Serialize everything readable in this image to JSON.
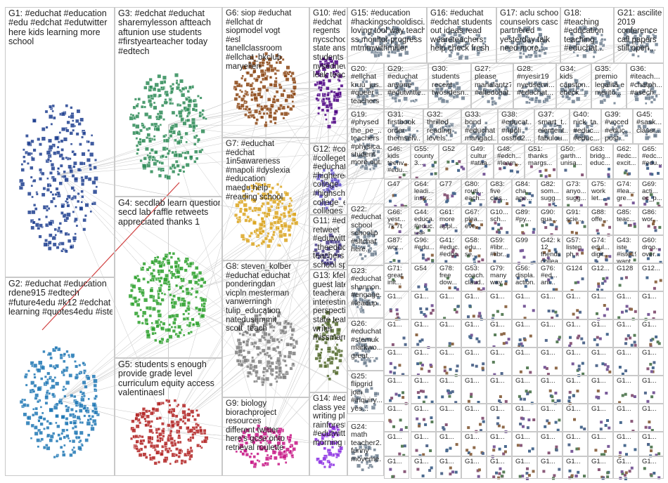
{
  "graph": {
    "description_visible": false,
    "groups": [
      {
        "id": "G1",
        "label": "G1: #educhat #education\n#edu #edchat #edutwitter\nhere kids learning more\nschool",
        "color": "#1f3f8f"
      },
      {
        "id": "G2",
        "label": "G2: #educhat #education\nrdene915 #edtech\n#future4edu #k12 #edchat\nlearning #quotes4edu #iste19",
        "color": "#1f77b4"
      },
      {
        "id": "G3",
        "label": "G3: #edchat #educhat\nsharemylesson aftteach\naftunion use students\n#firstyearteacher today\n#edtech",
        "color": "#2e8b57"
      },
      {
        "id": "G4",
        "label": "G4: secdlab learn questions\nsecd lab raffle retweets\nappreciated thanks 1",
        "color": "#2ca02c"
      },
      {
        "id": "G5",
        "label": "G5: students s enough\nprovide grade level\ncurriculum equity access\nvalentinaesl",
        "color": "#b22222"
      },
      {
        "id": "G6",
        "label": "G6: siop #educhat\n#ellchat dr\nsiopmodel vogt\n#esl\ntanellclassroom\n#ellchat_bkclub\nmaryellen",
        "color": "#8b4513"
      },
      {
        "id": "G7",
        "label": "G7: #educhat\n#edchat\n1in5awareness\n#mapoli #dyslexia\n#education\nmaedu help\n#reading school",
        "color": "#daa520"
      },
      {
        "id": "G8",
        "label": "G8: steven_kolber\n#educhat educhat\nponderingdan\nvicpln mesterman\nvanwerningh\ntulip_education\nnatedusummit\nscott_teach",
        "color": "#7f7f7f"
      },
      {
        "id": "G9",
        "label": "G9: biology\nbiorachproject\nresources\ndifferent twitter\nhere's gcse onto\nretrieval roulette",
        "color": "#c71585"
      },
      {
        "id": "G10",
        "label": "G10: #educhat\n#edchat\nregents\nnycschools\nstate answers\nstudents\nnysednews\nleak teachers",
        "color": "#4b0082"
      },
      {
        "id": "G11",
        "label": "G11: #educhat\nretweet\n#edutwitter nqt\n_theeducator\nteachers top tip\nschool spaces",
        "color": "#483d8b"
      },
      {
        "id": "G12",
        "label": "G12: #college\n#collegetalk\n#educhat\n#highered\ncollege\n#highschool\ncollege_exper...\ncolleges\n#education s",
        "color": "#6a5acd"
      },
      {
        "id": "G13",
        "label": "G13: kfelicello\nguest latest\nteacherandad...\ninteresting\nperspective\nstate teats\nwriter\nmissmarrion",
        "color": "#556b2f"
      },
      {
        "id": "G14",
        "label": "G14: #educhat\nclass year\nwriting please\nrainforests\n#edutwitter still\nmorning more",
        "color": "#8a2be2"
      },
      {
        "id": "G15",
        "label": "G15: #education\n#hackingschooldisci...\nloving tool way teach\nss monitor progress\nmtmmwithmiller",
        "color": "#708090"
      },
      {
        "id": "G16",
        "label": "G16: #educhat\n#edchat students\nout ideas read\nweareteachers\nhelp check fresh",
        "color": "#708090"
      },
      {
        "id": "G17",
        "label": "G17: aclu school\ncounselors casc\npartnered\nyesterday talk\nneed more...",
        "color": "#708090"
      },
      {
        "id": "G18",
        "label": "G18:\n#teaching\n#education\nteaching\n#educhat...",
        "color": "#708090"
      },
      {
        "id": "G21",
        "label": "G21: ascilite\n2019\nconference\ncall papers\nstill open...",
        "color": "#708090"
      },
      {
        "id": "G20",
        "label": "G20:\n#ellchat\nkruu_jus...\n#queer_...\nteachers",
        "color": "#708090"
      },
      {
        "id": "G29",
        "label": "G29:\n#educhat\nanyone\n#edutwitte...",
        "color": "#708090"
      },
      {
        "id": "G30",
        "label": "G30:\nstudents\nrecent\ntwosidesn...",
        "color": "#708090"
      },
      {
        "id": "G27",
        "label": "G27:\nplease\nmarialantz7\n#altedchat...",
        "color": "#708090"
      },
      {
        "id": "G28",
        "label": "G28:\n#nyesir19\nnyedservi...\n#educhat...",
        "color": "#708090"
      },
      {
        "id": "G34",
        "label": "G34:\nkids\ncapston...\ncheck...",
        "color": "#708090"
      },
      {
        "id": "G35",
        "label": "G35:\npremio\nlegalità e\nmerito...",
        "color": "#708090"
      },
      {
        "id": "G36",
        "label": "G36:\n#iteach...\n#chatph...\n#asech...",
        "color": "#708090"
      },
      {
        "id": "G19",
        "label": "G19:\n#physed\nthe_pe_...\nteachers\n#physica...\nstudent\nmore out...",
        "color": "#708090"
      },
      {
        "id": "G31",
        "label": "G31:\nfirstbook\norder\nthemselv...",
        "color": "#708090"
      },
      {
        "id": "G32",
        "label": "G32:\nthrilled\nreading\nlevels...",
        "color": "#708090"
      },
      {
        "id": "G33",
        "label": "G33:\nbond\n#educhat\nmangacl...",
        "color": "#708090"
      },
      {
        "id": "G38",
        "label": "G38:\n#educat...\n#npoli\nosstfd2...",
        "color": "#708090"
      },
      {
        "id": "G37",
        "label": "G37:\nsmart_t...\nelement...\nfabulou...",
        "color": "#708090"
      },
      {
        "id": "G40",
        "label": "G40:\nnick_ta...\n#educ...\n#educ...",
        "color": "#708090"
      },
      {
        "id": "G39",
        "label": "G39:\n#voced\n#educ...\npost...",
        "color": "#708090"
      },
      {
        "id": "G45",
        "label": "G45:\n#sask...\nclassr...",
        "color": "#708090"
      },
      {
        "id": "G22",
        "label": "G22:\n#educhat\nschool\nschoolip\n#sltchat\nhere...",
        "color": "#708090"
      },
      {
        "id": "G23",
        "label": "G23:\n#educhat\nshannon...\n#engage...\n#leadup...",
        "color": "#708090"
      },
      {
        "id": "G26",
        "label": "G26:\n#educhat\n#stemuk\nmarkwo...\ngreat...",
        "color": "#708090"
      },
      {
        "id": "G25",
        "label": "G25:\nflipgrid\njoin\n#inquiry...\nyes...",
        "color": "#708090"
      },
      {
        "id": "G24",
        "label": "G24:\nmath\nteacher2...\nfunny\nmoveme...",
        "color": "#708090"
      }
    ],
    "small_group_labels": [
      "G46:\nkids\nteenv...\n#edu...",
      "G55:\ncounty\n3...",
      "G52",
      "G49:\ncultur\n#ataa...",
      "G48:\n#edch...\n#learn...",
      "G51:\nthanks\nmargs...",
      "G50:\ngarth...\nunisa...",
      "G63:\nbridg...\neduc...",
      "G62:\n#edc...\nexcit...",
      "G65:\n#edc...\n#edu...",
      "G47",
      "G64:\nleadi...\ninstr...",
      "G77",
      "G80:\nrouti...\neach...",
      "G83:\nfive\nclas...",
      "G84:\ncha...\nage...",
      "G82:\nsom...\nsugg...",
      "G73:\nanyo...\nsugg...",
      "G75:\nwork\nlet...",
      "G74:\n#lea...\ngre...",
      "G69:\nacti...\nec_p...",
      "G66:\nyest...\n7k 7t",
      "G44:\neduca...\n#educ...\nuse...",
      "G61:\nmore\nappl...",
      "G67:\nplea...\neve...",
      "G10...\nsch...",
      "G89:\n#py...",
      "G90:\ngua...",
      "G91:\nscie...",
      "G88:\noffe...",
      "G85:\nteac...",
      "G86:\nwor...",
      "G87:\nwor...",
      "G96:\n#edu...",
      "G41:\n#educ...\n#educ...",
      "G58:\nedu...\nse...",
      "G59:\n#libr...\n#libr...",
      "G99",
      "G42: k\n12\nfriends\ncollea...",
      "G57:\nlisten\nph...",
      "G74:\nedul...\ndigit...",
      "G43:\niste\n#iste19\nwant...",
      "G60:\ndroo...\nover...",
      "G71:\ngreat\ninit...",
      "G54",
      "G78:\nfree\ndow...",
      "G53:\ncoach...\nclaud...",
      "G79:\nmany\nway...",
      "G56:\ndispla...\naction...",
      "G76:\n#ed...\nani...",
      "G124",
      "G12...",
      "G128",
      "G12..."
    ],
    "tiny_placeholder_label": "G1..."
  }
}
